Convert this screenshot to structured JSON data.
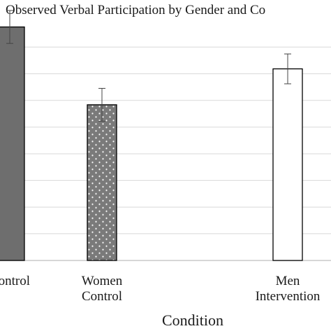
{
  "chart_data": {
    "type": "bar",
    "title": "Observed Verbal Participation by Gender and Co",
    "xlabel": "Condition",
    "ylabel": "",
    "ylim": [
      0,
      8
    ],
    "grid": true,
    "categories": [
      [
        "Control"
      ],
      [
        "Women",
        "Control"
      ],
      [
        "Men",
        "Intervention"
      ]
    ],
    "values": [
      7.8,
      5.2,
      6.4
    ],
    "error": [
      0.55,
      0.55,
      0.5
    ],
    "fills": [
      "solid-dark-gray",
      "dotted-gray",
      "white"
    ],
    "colors": {
      "dark_gray": "#6e6e6e",
      "dotted_gray": "#7a7a7a",
      "white": "#ffffff",
      "grid": "#d9d9d9",
      "axis": "#bfbfbf",
      "bar_border": "#000000",
      "text": "#1a1a1a"
    }
  }
}
